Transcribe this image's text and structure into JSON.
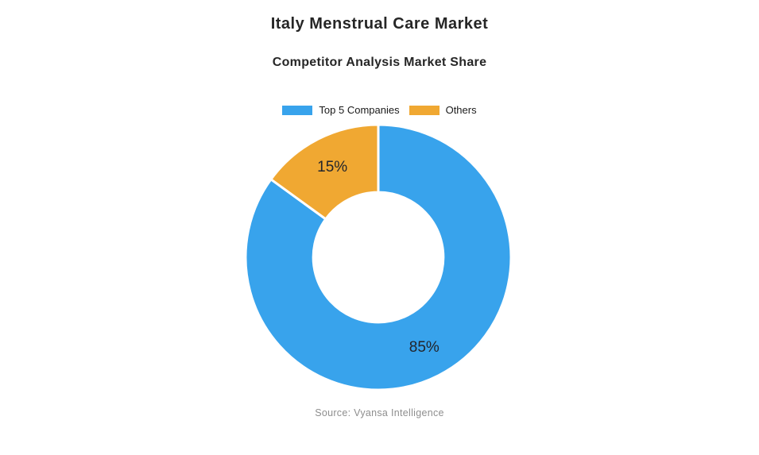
{
  "chart_data": {
    "type": "pie",
    "donut": true,
    "title": "Italy Menstrual Care Market",
    "subtitle": "Competitor Analysis Market Share",
    "segments": [
      {
        "label": "Top 5 Companies",
        "value": 85,
        "display": "85%",
        "color": "#38A3EC"
      },
      {
        "label": "Others",
        "value": 15,
        "display": "15%",
        "color": "#F0A832"
      }
    ],
    "start_angle_deg": -90,
    "direction": "clockwise",
    "inner_radius_ratio": 0.49,
    "legend_position": "top",
    "label_color": "#22252C",
    "background": "#FFFFFF",
    "source": "Source: Vyansa Intelligence"
  }
}
